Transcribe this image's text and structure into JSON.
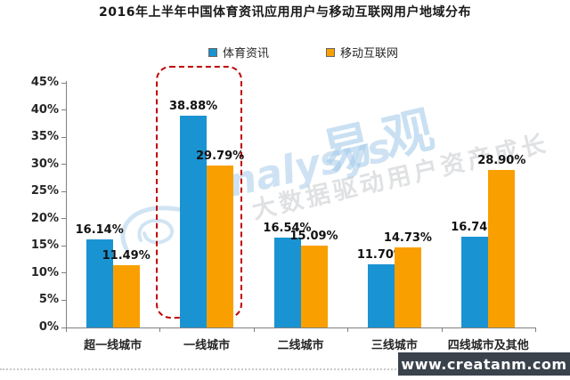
{
  "title": "2016年上半年中国体育资讯应用用户与移动互联网用户地域分布",
  "legend": [
    {
      "label": "体育资讯",
      "color": "#1a93d2"
    },
    {
      "label": "移动互联网",
      "color": "#f9a000"
    }
  ],
  "chart_data": {
    "type": "bar",
    "title": "2016年上半年中国体育资讯应用用户与移动互联网用户地域分布",
    "categories": [
      "超一线城市",
      "一线城市",
      "二线城市",
      "三线城市",
      "四线城市及其他"
    ],
    "series": [
      {
        "name": "体育资讯",
        "color": "#1a93d2",
        "values": [
          16.14,
          38.88,
          16.54,
          11.7,
          16.74
        ]
      },
      {
        "name": "移动互联网",
        "color": "#f9a000",
        "values": [
          11.49,
          29.79,
          15.09,
          14.73,
          28.9
        ]
      }
    ],
    "value_labels": [
      [
        "16.14%",
        "38.88%",
        "16.54%",
        "11.70%",
        "16.74%"
      ],
      [
        "11.49%",
        "29.79%",
        "15.09%",
        "14.73%",
        "28.90%"
      ]
    ],
    "ylim": [
      0,
      45
    ],
    "y_ticks": [
      "0%",
      "5%",
      "10%",
      "15%",
      "20%",
      "25%",
      "30%",
      "35%",
      "40%",
      "45%"
    ],
    "grid": false,
    "legend_position": "top",
    "highlight": {
      "category": "一线城市",
      "category_index": 1,
      "style": "red-dashed-rounded-box",
      "color": "#c00000"
    }
  },
  "watermark": {
    "brand_script": "analysys",
    "brand_cn": "易观",
    "slogan": "大数据驱动用户资产成长",
    "color": "#a5cbe9"
  },
  "footer": {
    "url": "www.creatanm.com",
    "bg_color": "#3a424c"
  }
}
